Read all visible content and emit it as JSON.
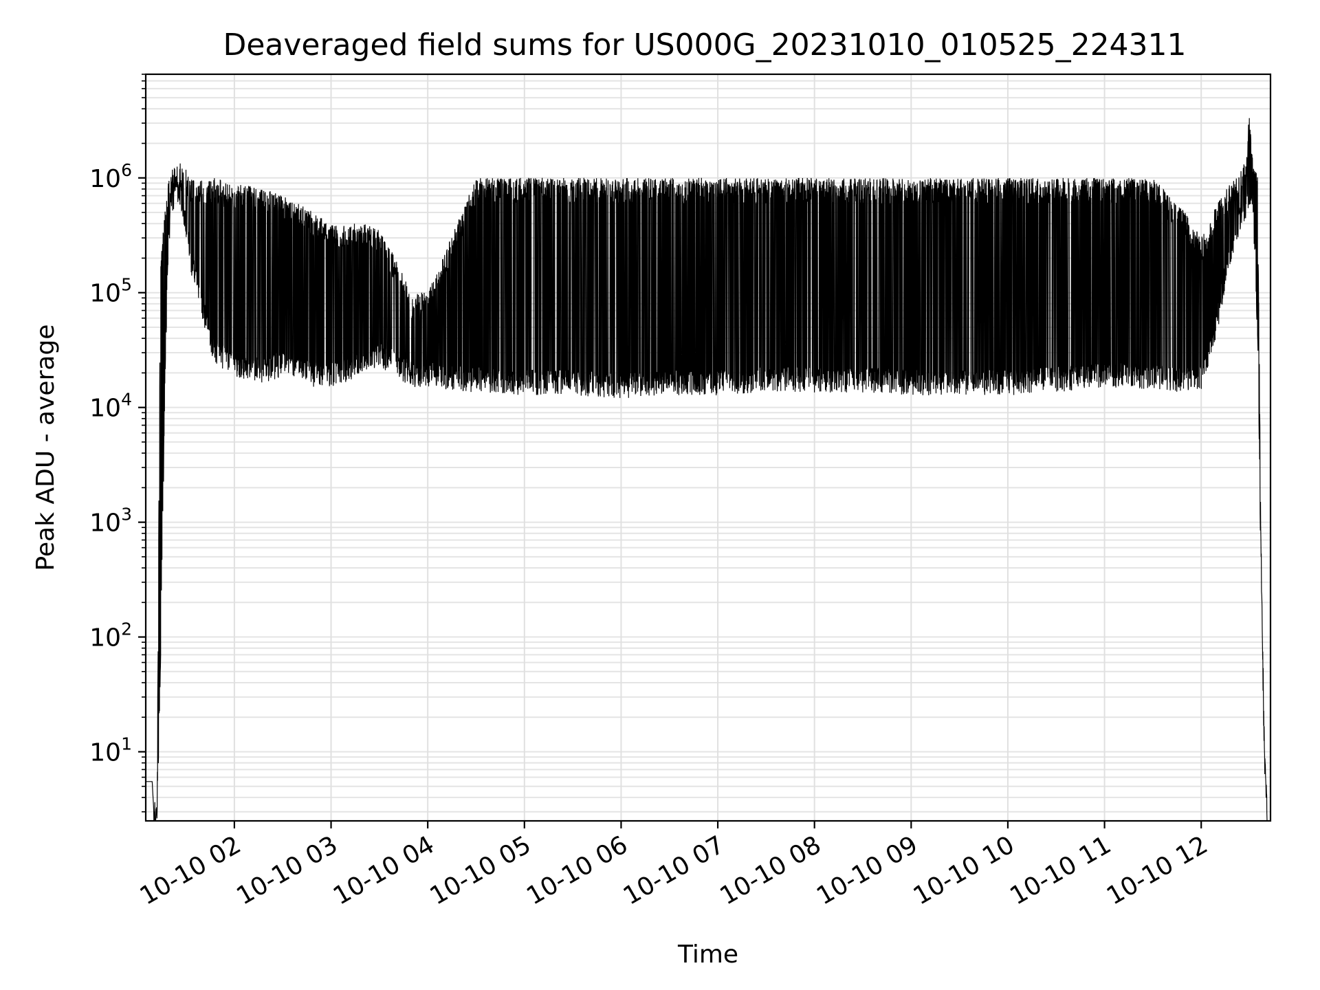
{
  "chart_data": {
    "type": "line",
    "title": "Deaveraged field sums for US000G_20231010_010525_224311",
    "xlabel": "Time",
    "ylabel": "Peak ADU - average",
    "yscale": "log",
    "grid": true,
    "xlim": [
      "2023-10-10 01:05",
      "2023-10-10 12:43"
    ],
    "ylim": [
      2.5,
      8000000
    ],
    "x_tick_labels": [
      "10-10 02",
      "10-10 03",
      "10-10 04",
      "10-10 05",
      "10-10 06",
      "10-10 07",
      "10-10 08",
      "10-10 09",
      "10-10 10",
      "10-10 11",
      "10-10 12"
    ],
    "y_tick_labels": [
      {
        "base": "10",
        "exp": "1",
        "value": 10
      },
      {
        "base": "10",
        "exp": "2",
        "value": 100
      },
      {
        "base": "10",
        "exp": "3",
        "value": 1000
      },
      {
        "base": "10",
        "exp": "4",
        "value": 10000
      },
      {
        "base": "10",
        "exp": "5",
        "value": 100000
      },
      {
        "base": "10",
        "exp": "6",
        "value": 1000000
      }
    ],
    "series_color": "#000000",
    "series": [
      {
        "x": [
          "2023-10-10 01:05",
          "2023-10-10 01:06",
          "2023-10-10 01:07",
          "2023-10-10 01:08",
          "2023-10-10 01:09",
          "2023-10-10 01:10",
          "2023-10-10 01:12",
          "2023-10-10 01:14",
          "2023-10-10 01:17",
          "2023-10-10 01:19",
          "2023-10-10 01:21",
          "2023-10-10 01:24",
          "2023-10-10 01:27",
          "2023-10-10 01:30",
          "2023-10-10 01:33",
          "2023-10-10 01:37",
          "2023-10-10 01:40",
          "2023-10-10 01:45",
          "2023-10-10 01:50",
          "2023-10-10 01:55",
          "2023-10-10 02:00",
          "2023-10-10 02:10",
          "2023-10-10 02:20",
          "2023-10-10 02:30",
          "2023-10-10 02:40",
          "2023-10-10 02:50",
          "2023-10-10 03:00",
          "2023-10-10 03:10",
          "2023-10-10 03:20",
          "2023-10-10 03:30",
          "2023-10-10 03:40",
          "2023-10-10 03:50",
          "2023-10-10 04:00",
          "2023-10-10 04:30",
          "2023-10-10 05:00",
          "2023-10-10 05:30",
          "2023-10-10 06:00",
          "2023-10-10 06:30",
          "2023-10-10 07:00",
          "2023-10-10 07:30",
          "2023-10-10 08:00",
          "2023-10-10 08:30",
          "2023-10-10 09:00",
          "2023-10-10 09:30",
          "2023-10-10 10:00",
          "2023-10-10 10:30",
          "2023-10-10 11:00",
          "2023-10-10 11:30",
          "2023-10-10 11:50",
          "2023-10-10 12:00",
          "2023-10-10 12:10",
          "2023-10-10 12:15",
          "2023-10-10 12:20",
          "2023-10-10 12:25",
          "2023-10-10 12:28",
          "2023-10-10 12:30",
          "2023-10-10 12:32",
          "2023-10-10 12:33",
          "2023-10-10 12:35",
          "2023-10-10 12:37",
          "2023-10-10 12:39",
          "2023-10-10 12:41"
        ],
        "lower": [
          5.5,
          5.5,
          5.5,
          5.5,
          5.5,
          3,
          3,
          50,
          20000,
          300000,
          600000,
          800000,
          700000,
          400000,
          200000,
          120000,
          80000,
          40000,
          30000,
          28000,
          25000,
          22000,
          22000,
          25000,
          22000,
          20000,
          20000,
          22000,
          25000,
          30000,
          25000,
          20000,
          20000,
          18000,
          17000,
          17000,
          16000,
          17000,
          17000,
          18000,
          18000,
          18000,
          17000,
          17000,
          17000,
          18000,
          20000,
          19000,
          18000,
          18000,
          60000,
          150000,
          300000,
          500000,
          600000,
          700000,
          800000,
          300000,
          50000,
          500,
          10,
          3
        ],
        "upper": [
          5.5,
          5.5,
          5.5,
          5.5,
          5.5,
          3,
          3,
          150000,
          600000,
          1000000,
          1200000,
          1300000,
          1400000,
          1200000,
          1000000,
          1000000,
          1000000,
          1000000,
          1000000,
          900000,
          900000,
          850000,
          800000,
          700000,
          600000,
          500000,
          400000,
          400000,
          400000,
          350000,
          200000,
          100000,
          100000,
          1000000,
          1000000,
          1000000,
          1000000,
          1000000,
          1000000,
          1000000,
          1000000,
          1000000,
          1000000,
          1000000,
          1000000,
          1000000,
          1000000,
          1000000,
          500000,
          300000,
          600000,
          800000,
          1000000,
          1200000,
          1500000,
          4000000,
          1600000,
          1400000,
          1000000,
          1000,
          20,
          3
        ]
      }
    ]
  }
}
